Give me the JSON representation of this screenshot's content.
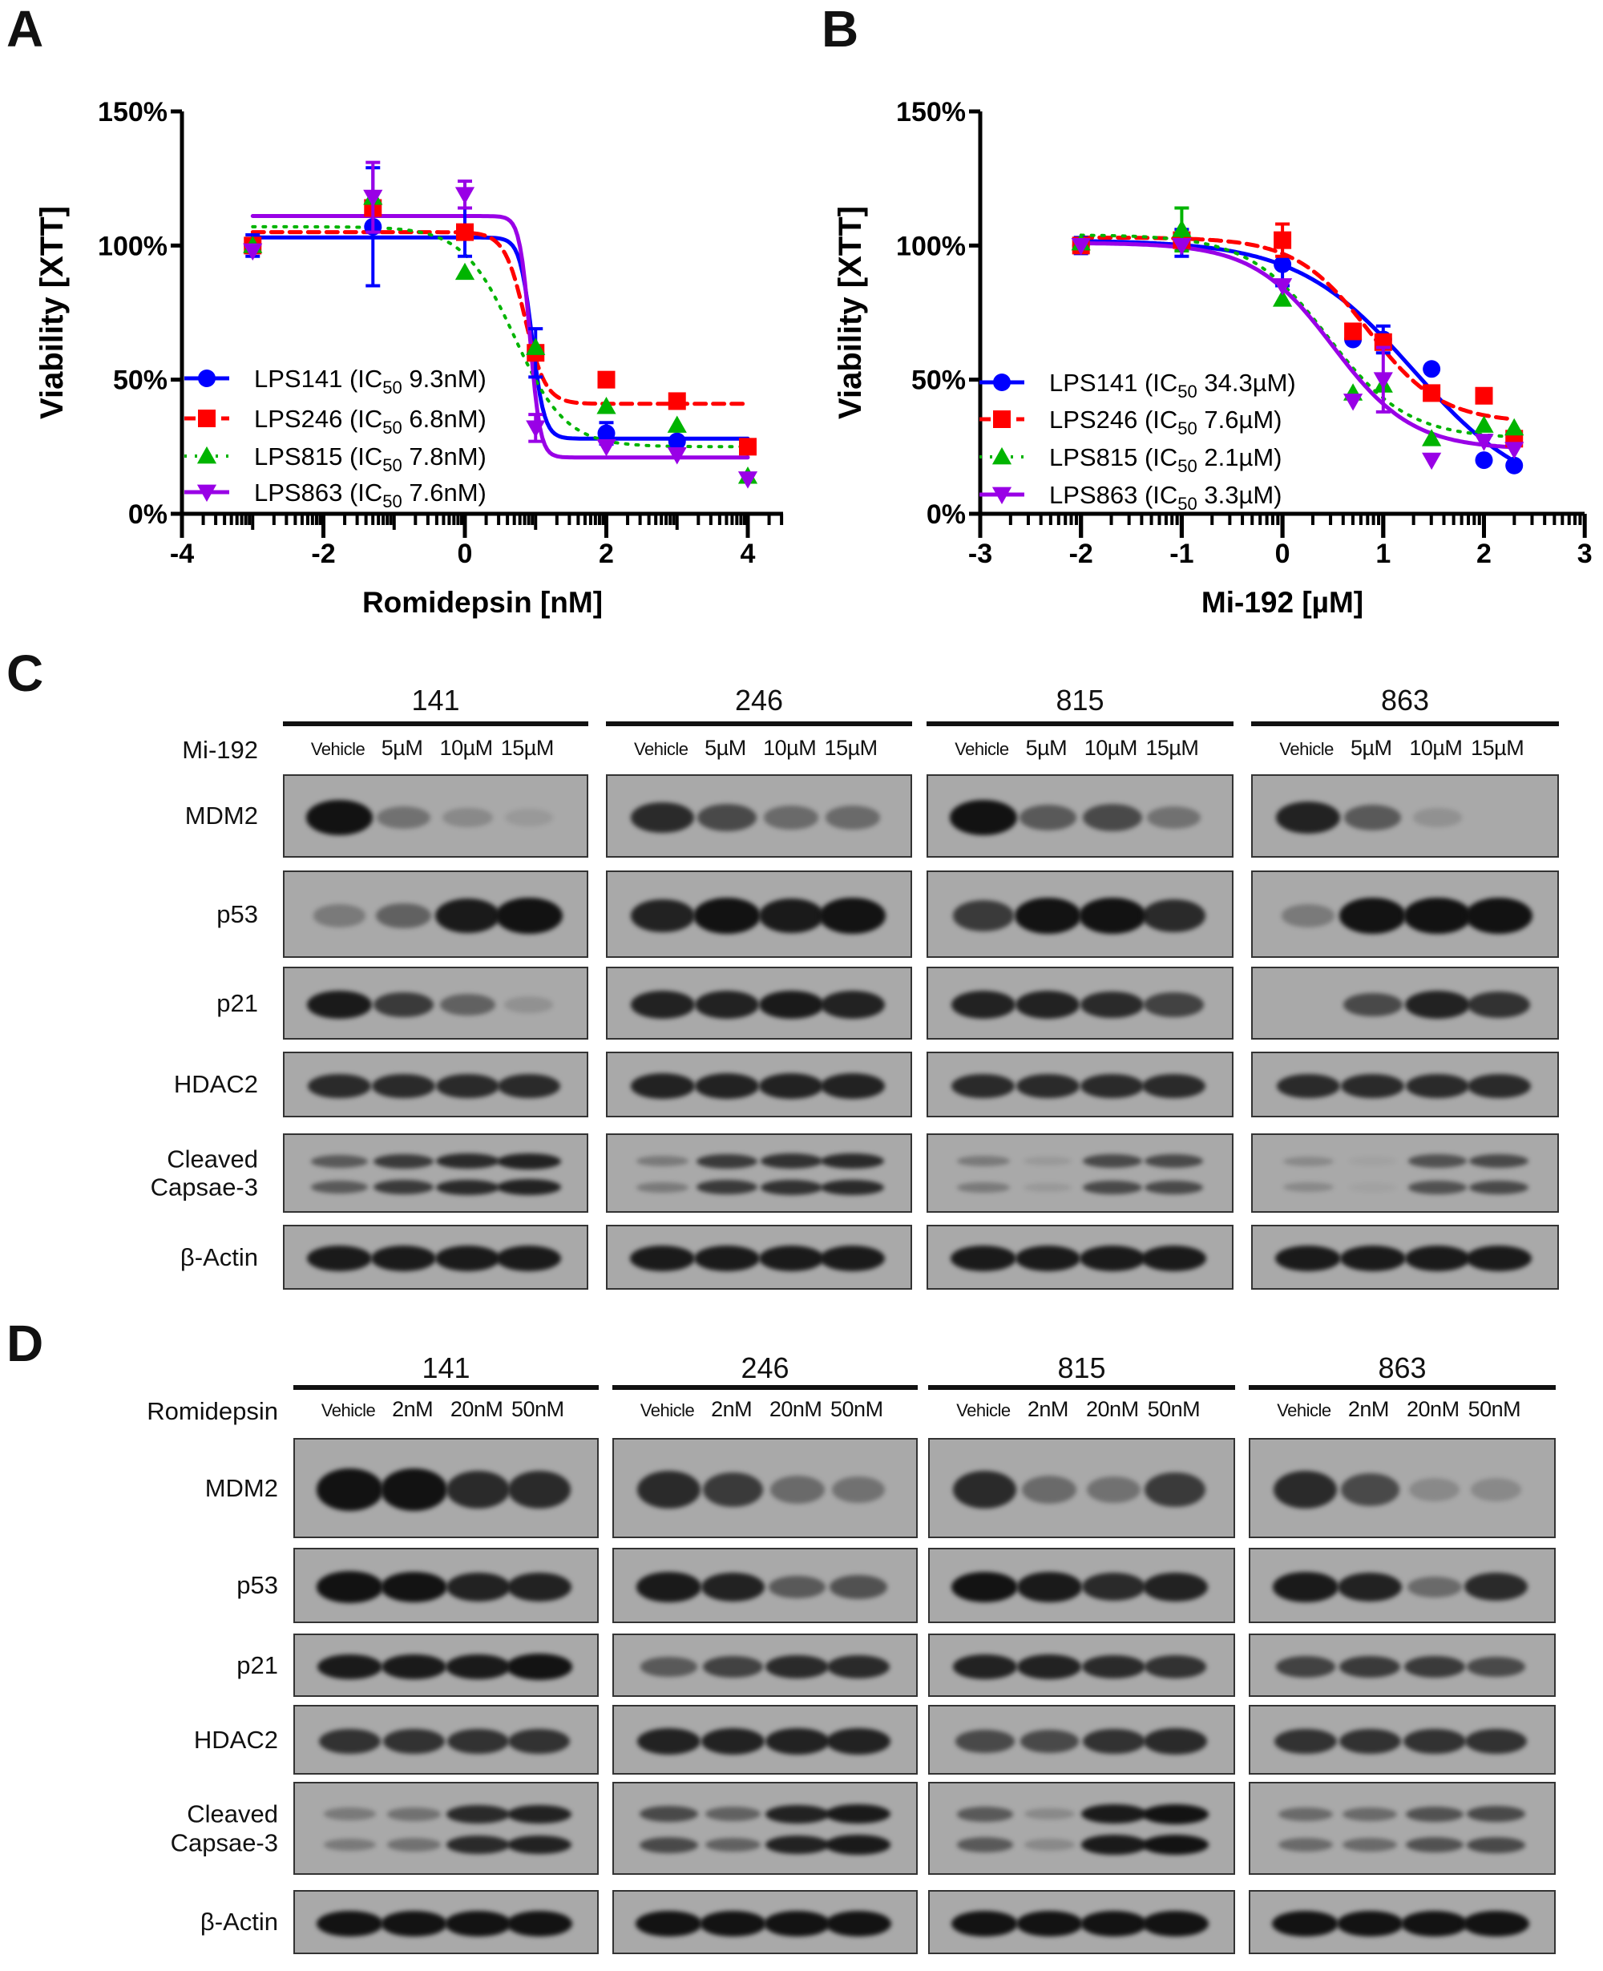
{
  "panel_letters": {
    "a": "A",
    "b": "B",
    "c": "C",
    "d": "D"
  },
  "chart_data": [
    {
      "type": "scatter",
      "panel": "A",
      "xlabel": "Romidepsin [nM]",
      "ylabel": "Viability [XTT]",
      "xlim": [
        -4,
        4.5
      ],
      "ylim": [
        0,
        150
      ],
      "x_ticks": [
        "-4",
        "-2",
        "0",
        "2",
        "4"
      ],
      "x_tick_values": [
        -4,
        -2,
        0,
        2,
        4
      ],
      "y_ticks": [
        "0%",
        "50%",
        "100%",
        "150%"
      ],
      "y_tick_values": [
        0,
        50,
        100,
        150
      ],
      "x_scale": "log10",
      "grid": false,
      "legend_position": "bottom-left",
      "x": [
        -3,
        -1.3,
        0,
        1,
        2,
        3,
        4
      ],
      "series": [
        {
          "name": "LPS141",
          "ic50_prefix": "IC",
          "ic50_sub": "50",
          "ic50_value": "9.3nM",
          "color": "#0000ff",
          "marker": "circle",
          "line": "solid",
          "values": [
            100,
            107,
            105,
            60,
            30,
            27,
            25
          ],
          "error": [
            4,
            22,
            9,
            9,
            4,
            null,
            null
          ]
        },
        {
          "name": "LPS246",
          "ic50_prefix": "IC",
          "ic50_sub": "50",
          "ic50_value": "6.8nM",
          "color": "#ff0000",
          "marker": "square",
          "line": "dashed",
          "values": [
            100,
            114,
            105,
            60,
            50,
            42,
            25
          ],
          "error": [
            null,
            null,
            null,
            null,
            null,
            null,
            null
          ]
        },
        {
          "name": "LPS815",
          "ic50_prefix": "IC",
          "ic50_sub": "50",
          "ic50_value": "7.8nM",
          "color": "#00b400",
          "marker": "triangle-up",
          "line": "dotted",
          "values": [
            100,
            118,
            90,
            62,
            40,
            33,
            14
          ],
          "error": [
            null,
            null,
            null,
            null,
            null,
            null,
            null
          ]
        },
        {
          "name": "LPS863",
          "ic50_prefix": "IC",
          "ic50_sub": "50",
          "ic50_value": "7.6nM",
          "color": "#9900e6",
          "marker": "triangle-down",
          "line": "solid",
          "values": [
            98,
            118,
            119,
            32,
            25,
            22,
            13
          ],
          "error": [
            null,
            13,
            5,
            5,
            null,
            null,
            null
          ]
        }
      ]
    },
    {
      "type": "scatter",
      "panel": "B",
      "xlabel": "Mi-192 [µM]",
      "ylabel": "Viability [XTT]",
      "xlim": [
        -3,
        3
      ],
      "ylim": [
        0,
        150
      ],
      "x_ticks": [
        "-3",
        "-2",
        "-1",
        "0",
        "1",
        "2",
        "3"
      ],
      "x_tick_values": [
        -3,
        -2,
        -1,
        0,
        1,
        2,
        3
      ],
      "y_ticks": [
        "0%",
        "50%",
        "100%",
        "150%"
      ],
      "y_tick_values": [
        0,
        50,
        100,
        150
      ],
      "x_scale": "log10",
      "grid": false,
      "legend_position": "bottom-left",
      "x": [
        -2,
        -1,
        0,
        0.7,
        1,
        1.48,
        2,
        2.3
      ],
      "series": [
        {
          "name": "LPS141",
          "ic50_prefix": "IC",
          "ic50_sub": "50",
          "ic50_value": "34.3µM",
          "color": "#0000ff",
          "marker": "circle",
          "line": "solid",
          "values": [
            100,
            101,
            93,
            65,
            65,
            54,
            20,
            18
          ],
          "error": [
            3,
            5,
            8,
            null,
            5,
            null,
            null,
            null
          ]
        },
        {
          "name": "LPS246",
          "ic50_prefix": "IC",
          "ic50_sub": "50",
          "ic50_value": "7.6µM",
          "color": "#ff0000",
          "marker": "square",
          "line": "dashed",
          "values": [
            100,
            102,
            102,
            68,
            64,
            45,
            44,
            28
          ],
          "error": [
            null,
            null,
            6,
            null,
            null,
            null,
            null,
            null
          ]
        },
        {
          "name": "LPS815",
          "ic50_prefix": "IC",
          "ic50_sub": "50",
          "ic50_value": "2.1µM",
          "color": "#00b400",
          "marker": "triangle-up",
          "line": "dotted",
          "values": [
            101,
            106,
            80,
            45,
            48,
            28,
            33,
            32
          ],
          "error": [
            null,
            8,
            null,
            null,
            null,
            null,
            null,
            null
          ]
        },
        {
          "name": "LPS863",
          "ic50_prefix": "IC",
          "ic50_sub": "50",
          "ic50_value": "3.3µM",
          "color": "#9900e6",
          "marker": "triangle-down",
          "line": "solid",
          "values": [
            100,
            100,
            85,
            42,
            50,
            20,
            27,
            24
          ],
          "error": [
            null,
            null,
            null,
            null,
            12,
            null,
            null,
            null
          ]
        }
      ]
    }
  ],
  "blots": [
    {
      "panel": "C",
      "treatment_label": "Mi-192",
      "lanes": [
        "Vehicle",
        "5µM",
        "10µM",
        "15µM"
      ],
      "rows": [
        "MDM2",
        "p53",
        "p21",
        "HDAC2",
        "Cleaved\nCapsae-3",
        "β-Actin"
      ],
      "groups": [
        {
          "label": "141",
          "intensity": [
            [
              1,
              0.35,
              0.2,
              0.1
            ],
            [
              0.3,
              0.45,
              0.9,
              1
            ],
            [
              0.9,
              0.7,
              0.45,
              0.15
            ],
            [
              0.8,
              0.8,
              0.8,
              0.8
            ],
            [
              0.5,
              0.7,
              0.8,
              0.85
            ],
            [
              0.9,
              0.9,
              0.9,
              0.9
            ]
          ]
        },
        {
          "label": "246",
          "intensity": [
            [
              0.8,
              0.6,
              0.4,
              0.4
            ],
            [
              0.85,
              1,
              0.9,
              0.95
            ],
            [
              0.85,
              0.85,
              0.9,
              0.85
            ],
            [
              0.85,
              0.85,
              0.85,
              0.85
            ],
            [
              0.3,
              0.7,
              0.75,
              0.8
            ],
            [
              0.9,
              0.9,
              0.9,
              0.9
            ]
          ]
        },
        {
          "label": "815",
          "intensity": [
            [
              1,
              0.5,
              0.6,
              0.35
            ],
            [
              0.7,
              0.95,
              1,
              0.8
            ],
            [
              0.85,
              0.85,
              0.8,
              0.65
            ],
            [
              0.8,
              0.8,
              0.8,
              0.8
            ],
            [
              0.3,
              0.1,
              0.6,
              0.6
            ],
            [
              0.9,
              0.9,
              0.9,
              0.9
            ]
          ]
        },
        {
          "label": "863",
          "intensity": [
            [
              0.85,
              0.5,
              0.15,
              0
            ],
            [
              0.3,
              0.95,
              1,
              1
            ],
            [
              0,
              0.6,
              0.85,
              0.75
            ],
            [
              0.8,
              0.8,
              0.8,
              0.8
            ],
            [
              0.2,
              0.05,
              0.55,
              0.6
            ],
            [
              0.9,
              0.9,
              0.9,
              0.9
            ]
          ]
        }
      ]
    },
    {
      "panel": "D",
      "treatment_label": "Romidepsin",
      "lanes": [
        "Vehicle",
        "2nM",
        "20nM",
        "50nM"
      ],
      "rows": [
        "MDM2",
        "p53",
        "p21",
        "HDAC2",
        "Cleaved\nCapsae-3",
        "β-Actin"
      ],
      "groups": [
        {
          "label": "141",
          "intensity": [
            [
              1,
              1,
              0.8,
              0.8
            ],
            [
              1,
              0.95,
              0.85,
              0.85
            ],
            [
              0.9,
              0.9,
              0.9,
              0.95
            ],
            [
              0.75,
              0.75,
              0.75,
              0.75
            ],
            [
              0.3,
              0.35,
              0.8,
              0.85
            ],
            [
              0.95,
              0.95,
              0.95,
              0.95
            ]
          ]
        },
        {
          "label": "246",
          "intensity": [
            [
              0.8,
              0.7,
              0.4,
              0.35
            ],
            [
              0.9,
              0.85,
              0.5,
              0.55
            ],
            [
              0.5,
              0.65,
              0.8,
              0.8
            ],
            [
              0.85,
              0.85,
              0.85,
              0.85
            ],
            [
              0.6,
              0.45,
              0.85,
              0.9
            ],
            [
              0.95,
              0.95,
              0.95,
              0.95
            ]
          ]
        },
        {
          "label": "815",
          "intensity": [
            [
              0.8,
              0.4,
              0.35,
              0.7
            ],
            [
              0.95,
              0.9,
              0.8,
              0.85
            ],
            [
              0.85,
              0.85,
              0.8,
              0.75
            ],
            [
              0.6,
              0.6,
              0.75,
              0.8
            ],
            [
              0.5,
              0.2,
              0.9,
              0.95
            ],
            [
              0.95,
              0.95,
              0.95,
              0.95
            ]
          ]
        },
        {
          "label": "863",
          "intensity": [
            [
              0.8,
              0.6,
              0.2,
              0.2
            ],
            [
              0.9,
              0.85,
              0.4,
              0.8
            ],
            [
              0.65,
              0.7,
              0.7,
              0.6
            ],
            [
              0.75,
              0.75,
              0.75,
              0.75
            ],
            [
              0.4,
              0.4,
              0.55,
              0.6
            ],
            [
              0.95,
              0.95,
              0.95,
              0.95
            ]
          ]
        }
      ]
    }
  ]
}
